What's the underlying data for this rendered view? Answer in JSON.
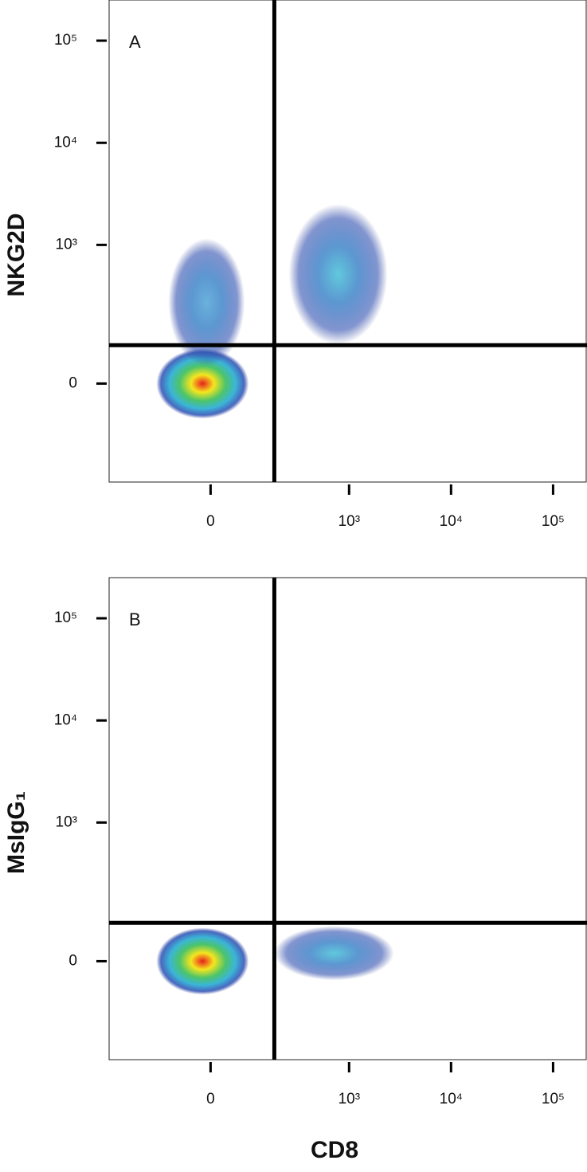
{
  "chart_data": [
    {
      "type": "density",
      "panel": "A",
      "y_label": "NKG2D",
      "xlim": [
        -430,
        215000
      ],
      "ylim": [
        -400,
        250000
      ],
      "xticks": [
        0,
        {
          "value": 1000,
          "label": "10³"
        },
        {
          "value": 10000,
          "label": "10⁴"
        },
        {
          "value": 100000,
          "label": "10⁵"
        }
      ],
      "yticks": [
        0,
        {
          "value": 1000,
          "label": "10³"
        },
        {
          "value": 10000,
          "label": "10⁴"
        },
        {
          "value": 100000,
          "label": "10⁵"
        }
      ],
      "gates": {
        "x": 175,
        "y": 86
      },
      "populations": [
        {
          "x": -16,
          "y": 0,
          "peak_color": "#e8201c"
        },
        {
          "x": 780,
          "y": 513,
          "peak_color": "#4fc3d9"
        },
        {
          "x": -8,
          "y": 268,
          "peak_color": "#5aa9d8"
        }
      ]
    },
    {
      "type": "density",
      "panel": "B",
      "y_label": "MsIgG₁",
      "x_label": "CD8",
      "xlim": [
        -430,
        215000
      ],
      "ylim": [
        -400,
        250000
      ],
      "xticks": [
        0,
        {
          "value": 1000,
          "label": "10³"
        },
        {
          "value": 10000,
          "label": "10⁴"
        },
        {
          "value": 100000,
          "label": "10⁵"
        }
      ],
      "yticks": [
        0,
        {
          "value": 1000,
          "label": "10³"
        },
        {
          "value": 10000,
          "label": "10⁴"
        },
        {
          "value": 100000,
          "label": "10⁵"
        }
      ],
      "gates": {
        "x": 175,
        "y": 86
      },
      "populations": [
        {
          "x": -16,
          "y": 0,
          "peak_color": "#e8201c"
        },
        {
          "x": 713,
          "y": 16,
          "peak_color": "#4fc3d9"
        }
      ]
    }
  ]
}
